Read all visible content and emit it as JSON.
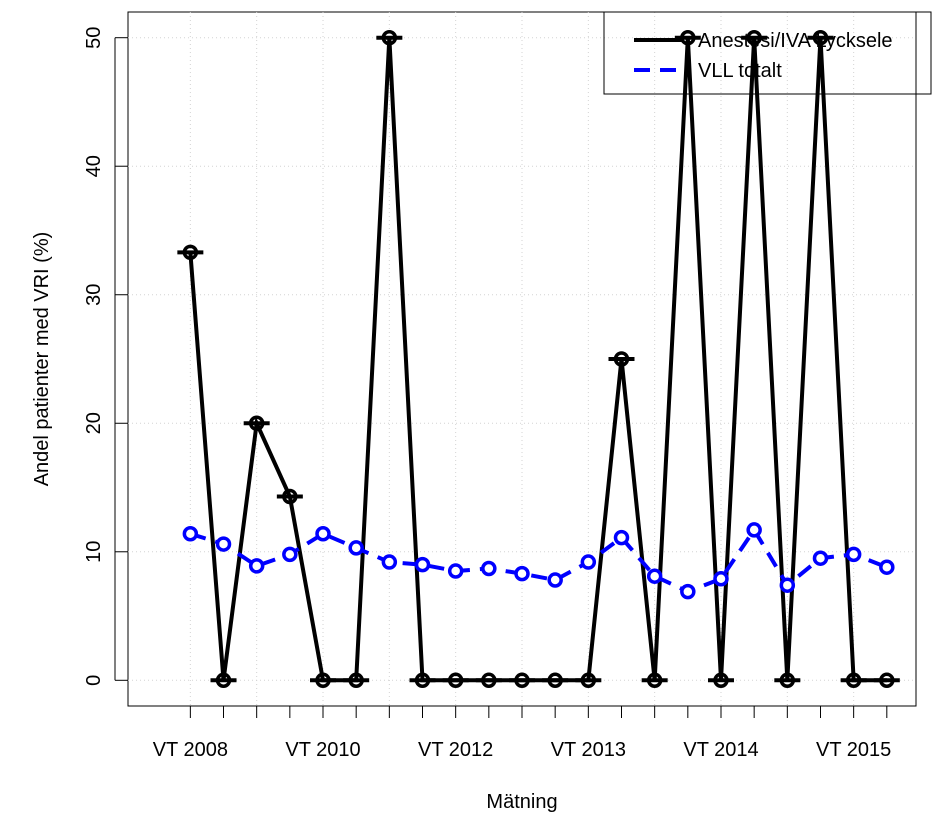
{
  "chart_data": {
    "type": "line",
    "x_label": "Mätning",
    "y_label": "Andel patienter med VRI (%)",
    "categories": [
      "VT 2008",
      null,
      null,
      null,
      "VT 2010",
      null,
      null,
      null,
      "VT 2012",
      null,
      null,
      null,
      "VT 2013",
      null,
      null,
      null,
      "VT 2014",
      null,
      null,
      null,
      "VT 2015",
      null
    ],
    "series": [
      {
        "name": "Anestesi/IVA Lycksele",
        "color": "#000000",
        "dashed": false,
        "values": [
          33.3,
          0,
          20,
          14.3,
          0,
          0,
          50,
          0,
          0,
          0,
          0,
          0,
          0,
          25,
          0,
          50,
          0,
          50,
          0,
          50,
          0,
          0
        ]
      },
      {
        "name": "VLL totalt",
        "color": "#0000ff",
        "dashed": true,
        "values": [
          11.4,
          10.6,
          8.9,
          9.8,
          11.4,
          10.3,
          9.2,
          9.0,
          8.5,
          8.7,
          8.3,
          7.8,
          9.2,
          11.1,
          8.1,
          6.9,
          7.9,
          11.7,
          7.4,
          9.5,
          9.8,
          8.8
        ]
      }
    ],
    "ylim": [
      -2,
      52
    ],
    "yticks": [
      0,
      10,
      20,
      30,
      40,
      50
    ],
    "grid": true,
    "legend_position": "top-right"
  }
}
